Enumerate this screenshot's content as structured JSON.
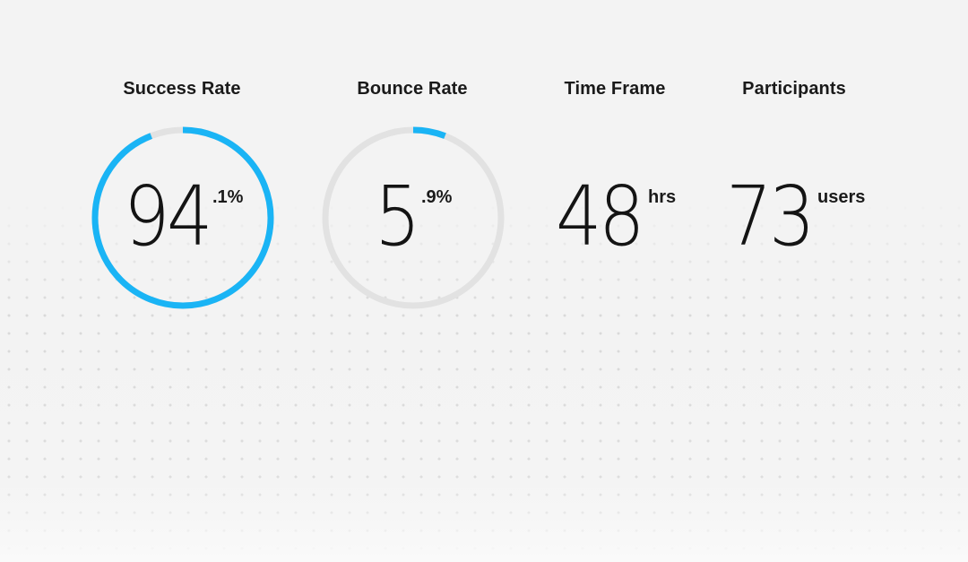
{
  "stats": [
    {
      "label": "Success Rate",
      "value": "94",
      "suffix": ".1%",
      "progress_percent": 94.1
    },
    {
      "label": "Bounce Rate",
      "value": "5",
      "suffix": ".9%",
      "progress_percent": 5.9
    },
    {
      "label": "Time Frame",
      "value": "48",
      "suffix": "hrs"
    },
    {
      "label": "Participants",
      "value": "73",
      "suffix": "users"
    }
  ],
  "colors": {
    "accent": "#1ab4f5",
    "track": "#e2e2e2",
    "background": "#f3f3f3",
    "dots": "#d9d9d9"
  }
}
